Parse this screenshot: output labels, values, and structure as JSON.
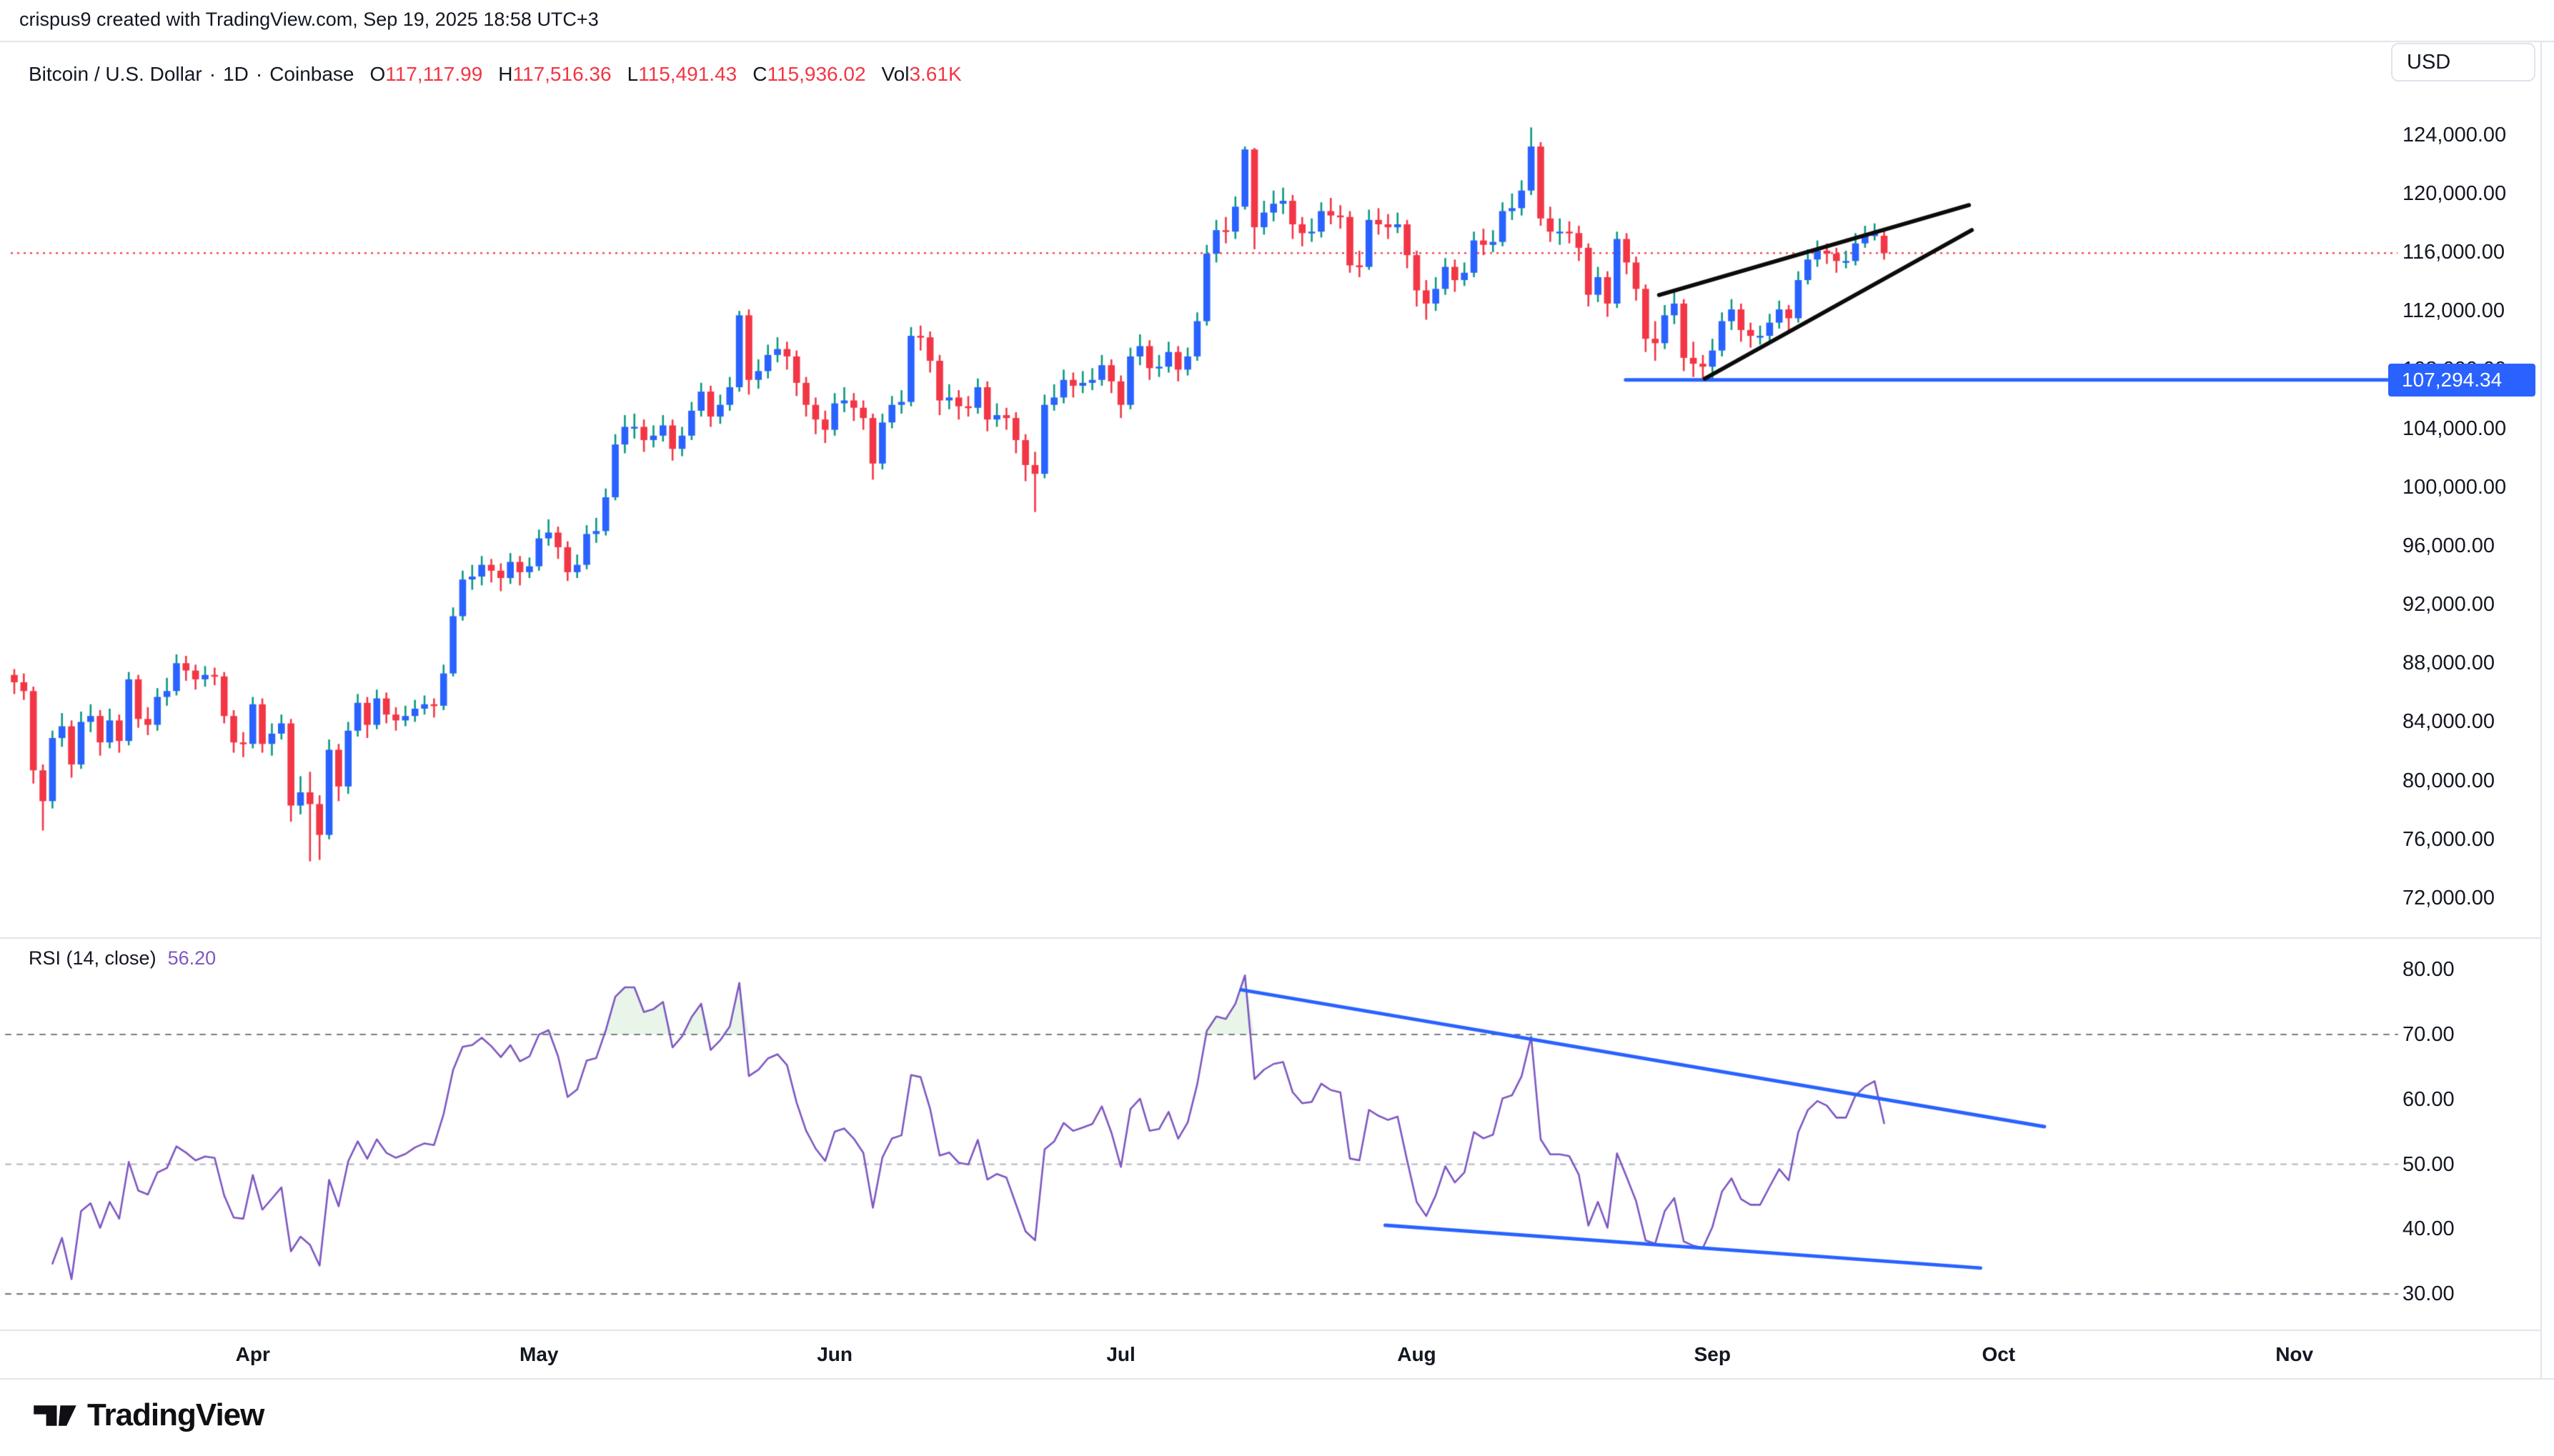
{
  "header": {
    "attribution": "crispus9 created with TradingView.com, Sep 19, 2025 18:58 UTC+3"
  },
  "legend": {
    "symbol": "Bitcoin / U.S. Dollar",
    "dot": "·",
    "interval": "1D",
    "exchange": "Coinbase",
    "o_label": "O",
    "o_value": "117,117.99",
    "h_label": "H",
    "h_value": "117,516.36",
    "l_label": "L",
    "l_value": "115,491.43",
    "c_label": "C",
    "c_value": "115,936.02",
    "vol_label": "Vol",
    "vol_value": "3.61K"
  },
  "price_axis": {
    "currency": "USD",
    "badge_label": "107,294.34",
    "ticks": [
      124000,
      120000,
      116000,
      112000,
      108000,
      104000,
      100000,
      96000,
      92000,
      88000,
      84000,
      80000,
      76000,
      72000
    ]
  },
  "rsi": {
    "label": "RSI (14, close)",
    "value": "56.20",
    "ticks": [
      80,
      70,
      60,
      50,
      40,
      30
    ],
    "overbought": 70,
    "midline": 50,
    "oversold": 30,
    "period": 14,
    "source": "close"
  },
  "time_axis": {
    "months": [
      {
        "label": "Apr",
        "day_index": 25
      },
      {
        "label": "May",
        "day_index": 55
      },
      {
        "label": "Jun",
        "day_index": 86
      },
      {
        "label": "Jul",
        "day_index": 116
      },
      {
        "label": "Aug",
        "day_index": 147
      },
      {
        "label": "Sep",
        "day_index": 178
      },
      {
        "label": "Oct",
        "day_index": 208
      },
      {
        "label": "Nov",
        "day_index": 239
      }
    ]
  },
  "footer": {
    "brand": "TradingView"
  },
  "colors": {
    "up": "#2962FF",
    "up_wick": "#089981",
    "down": "#F23645",
    "rsi_line": "#7E57C2",
    "level_dark": "#787B86",
    "level_light": "#B8BCC4",
    "drawing_blue": "#2962FF",
    "drawing_black": "#0C0C0C",
    "border": "#E0E3EB",
    "text": "#131722",
    "price_line": "#F23645",
    "overbought_fill": "rgba(76,175,80,0.13)",
    "oversold_fill": "rgba(242,54,69,0.10)"
  },
  "chart_data": {
    "type": "candlestick",
    "title": "Bitcoin / U.S. Dollar · 1D · Coinbase",
    "start_date": "2025-03-07",
    "end_date": "2025-09-19",
    "interval": "1D",
    "ylim": [
      69000,
      130300
    ],
    "legend_last": {
      "open": 117117.99,
      "high": 117516.36,
      "low": 115491.43,
      "close": 115936.02,
      "volume": "3.61K"
    },
    "price_line": {
      "price": 115936.02,
      "style": "dotted"
    },
    "candles": [
      [
        87200,
        87600,
        85900,
        86700
      ],
      [
        86700,
        87300,
        85500,
        86100
      ],
      [
        86100,
        86400,
        79800,
        80700
      ],
      [
        80700,
        81100,
        76600,
        78600
      ],
      [
        78600,
        83400,
        78100,
        82900
      ],
      [
        82900,
        84600,
        82300,
        83700
      ],
      [
        83700,
        84100,
        80200,
        81100
      ],
      [
        81100,
        84700,
        80800,
        84000
      ],
      [
        84000,
        85200,
        83300,
        84400
      ],
      [
        84400,
        84800,
        81700,
        82600
      ],
      [
        82600,
        84900,
        82200,
        84100
      ],
      [
        84100,
        84500,
        81900,
        82700
      ],
      [
        82700,
        87400,
        82400,
        86900
      ],
      [
        86900,
        87200,
        83600,
        84200
      ],
      [
        84200,
        85000,
        83100,
        83800
      ],
      [
        83800,
        86300,
        83400,
        85700
      ],
      [
        85700,
        87000,
        85100,
        86100
      ],
      [
        86100,
        88600,
        85800,
        88000
      ],
      [
        88000,
        88500,
        86800,
        87500
      ],
      [
        87500,
        87900,
        86200,
        86900
      ],
      [
        86900,
        87800,
        86400,
        87200
      ],
      [
        87200,
        87700,
        86500,
        87100
      ],
      [
        87100,
        87400,
        83900,
        84400
      ],
      [
        84400,
        84800,
        81900,
        82600
      ],
      [
        82600,
        83300,
        81600,
        82500
      ],
      [
        82500,
        85700,
        82200,
        85200
      ],
      [
        85200,
        85600,
        81900,
        82500
      ],
      [
        82500,
        83900,
        81700,
        83200
      ],
      [
        83200,
        84500,
        82800,
        83900
      ],
      [
        83900,
        84200,
        77200,
        78300
      ],
      [
        78300,
        80300,
        77700,
        79200
      ],
      [
        79200,
        80600,
        74500,
        78400
      ],
      [
        78400,
        79000,
        74600,
        76300
      ],
      [
        76300,
        82800,
        76000,
        82100
      ],
      [
        82100,
        82500,
        78600,
        79600
      ],
      [
        79600,
        84000,
        79100,
        83400
      ],
      [
        83400,
        85900,
        83000,
        85300
      ],
      [
        85300,
        85700,
        82900,
        83800
      ],
      [
        83800,
        86200,
        83500,
        85600
      ],
      [
        85600,
        86000,
        83900,
        84500
      ],
      [
        84500,
        85000,
        83400,
        84100
      ],
      [
        84100,
        85100,
        83700,
        84400
      ],
      [
        84400,
        85500,
        84000,
        84900
      ],
      [
        84900,
        85800,
        84500,
        85200
      ],
      [
        85200,
        85600,
        84300,
        85100
      ],
      [
        85100,
        87900,
        84800,
        87300
      ],
      [
        87300,
        91800,
        87100,
        91200
      ],
      [
        91200,
        94300,
        90900,
        93700
      ],
      [
        93700,
        94700,
        93000,
        93900
      ],
      [
        93900,
        95300,
        93300,
        94700
      ],
      [
        94700,
        95100,
        93500,
        94300
      ],
      [
        94300,
        94800,
        92900,
        93800
      ],
      [
        93800,
        95500,
        93400,
        94900
      ],
      [
        94900,
        95300,
        93300,
        94200
      ],
      [
        94200,
        95200,
        93800,
        94600
      ],
      [
        94600,
        97100,
        94300,
        96500
      ],
      [
        96500,
        97800,
        96000,
        96900
      ],
      [
        96900,
        97300,
        95100,
        95900
      ],
      [
        95900,
        96300,
        93600,
        94200
      ],
      [
        94200,
        95400,
        93800,
        94700
      ],
      [
        94700,
        97400,
        94400,
        96800
      ],
      [
        96800,
        97900,
        96200,
        97000
      ],
      [
        97000,
        99900,
        96700,
        99300
      ],
      [
        99300,
        103600,
        99100,
        102900
      ],
      [
        102900,
        104900,
        102300,
        104100
      ],
      [
        104100,
        105000,
        103300,
        104100
      ],
      [
        104100,
        104600,
        102400,
        103200
      ],
      [
        103200,
        104200,
        102700,
        103500
      ],
      [
        103500,
        104900,
        103100,
        104200
      ],
      [
        104200,
        104600,
        101800,
        102600
      ],
      [
        102600,
        104100,
        102100,
        103500
      ],
      [
        103500,
        105800,
        103200,
        105200
      ],
      [
        105200,
        107100,
        104800,
        106500
      ],
      [
        106500,
        106900,
        104100,
        104800
      ],
      [
        104800,
        106300,
        104300,
        105600
      ],
      [
        105600,
        107500,
        105200,
        106800
      ],
      [
        106800,
        112000,
        106500,
        111700
      ],
      [
        111700,
        112100,
        106300,
        107300
      ],
      [
        107300,
        108700,
        106700,
        107900
      ],
      [
        107900,
        109700,
        107400,
        109000
      ],
      [
        109000,
        110200,
        108500,
        109400
      ],
      [
        109400,
        109900,
        108000,
        108900
      ],
      [
        108900,
        109300,
        106200,
        107100
      ],
      [
        107100,
        107500,
        104800,
        105600
      ],
      [
        105600,
        106100,
        103600,
        104600
      ],
      [
        104600,
        105200,
        103000,
        103900
      ],
      [
        103900,
        106400,
        103500,
        105700
      ],
      [
        105700,
        106800,
        105100,
        105900
      ],
      [
        105900,
        106400,
        104500,
        105400
      ],
      [
        105400,
        105900,
        103900,
        104700
      ],
      [
        104700,
        105000,
        100500,
        101600
      ],
      [
        101600,
        105000,
        101200,
        104400
      ],
      [
        104400,
        106200,
        104000,
        105600
      ],
      [
        105600,
        106600,
        105000,
        105800
      ],
      [
        105800,
        110900,
        105500,
        110300
      ],
      [
        110300,
        111000,
        109300,
        110200
      ],
      [
        110200,
        110600,
        107800,
        108600
      ],
      [
        108600,
        109000,
        104900,
        105900
      ],
      [
        105900,
        107000,
        105300,
        106100
      ],
      [
        106100,
        106600,
        104600,
        105500
      ],
      [
        105500,
        106200,
        104800,
        105400
      ],
      [
        105400,
        107400,
        105000,
        106800
      ],
      [
        106800,
        107200,
        103800,
        104600
      ],
      [
        104600,
        105700,
        104100,
        104900
      ],
      [
        104900,
        105400,
        103900,
        104700
      ],
      [
        104700,
        105100,
        102300,
        103200
      ],
      [
        103200,
        103600,
        100400,
        101500
      ],
      [
        101500,
        102400,
        98300,
        100900
      ],
      [
        100900,
        106300,
        100600,
        105600
      ],
      [
        105600,
        107000,
        105200,
        106100
      ],
      [
        106100,
        108000,
        105700,
        107300
      ],
      [
        107300,
        107800,
        106100,
        106900
      ],
      [
        106900,
        107900,
        106400,
        107100
      ],
      [
        107100,
        108100,
        106600,
        107300
      ],
      [
        107300,
        109000,
        106900,
        108300
      ],
      [
        108300,
        108700,
        106400,
        107200
      ],
      [
        107200,
        107600,
        104700,
        105600
      ],
      [
        105600,
        109500,
        105300,
        108900
      ],
      [
        108900,
        110400,
        108300,
        109600
      ],
      [
        109600,
        110000,
        107300,
        108100
      ],
      [
        108100,
        109000,
        107500,
        108200
      ],
      [
        108200,
        109900,
        107800,
        109200
      ],
      [
        109200,
        109600,
        107200,
        108000
      ],
      [
        108000,
        109500,
        107600,
        108900
      ],
      [
        108900,
        111900,
        108600,
        111300
      ],
      [
        111300,
        116500,
        111000,
        115900
      ],
      [
        115900,
        118200,
        115300,
        117500
      ],
      [
        117500,
        118400,
        116600,
        117400
      ],
      [
        117400,
        119800,
        116900,
        119100
      ],
      [
        119100,
        123200,
        118900,
        123000
      ],
      [
        123000,
        123100,
        116200,
        117700
      ],
      [
        117700,
        119500,
        117200,
        118700
      ],
      [
        118700,
        120200,
        118100,
        119300
      ],
      [
        119300,
        120400,
        118600,
        119500
      ],
      [
        119500,
        119900,
        116900,
        117900
      ],
      [
        117900,
        118400,
        116400,
        117300
      ],
      [
        117300,
        118300,
        116700,
        117400
      ],
      [
        117400,
        119400,
        117000,
        118800
      ],
      [
        118800,
        119700,
        117900,
        118500
      ],
      [
        118500,
        119200,
        117600,
        118400
      ],
      [
        118400,
        118800,
        114600,
        115100
      ],
      [
        115100,
        116100,
        114300,
        115000
      ],
      [
        115000,
        118900,
        114800,
        118200
      ],
      [
        118200,
        119000,
        117200,
        117900
      ],
      [
        117900,
        118600,
        116900,
        117700
      ],
      [
        117700,
        118700,
        117300,
        117900
      ],
      [
        117900,
        118200,
        114900,
        115800
      ],
      [
        115800,
        116100,
        112300,
        113400
      ],
      [
        113400,
        114100,
        111400,
        112500
      ],
      [
        112500,
        114300,
        112000,
        113500
      ],
      [
        113500,
        115600,
        113100,
        115000
      ],
      [
        115000,
        115500,
        113300,
        114100
      ],
      [
        114100,
        115300,
        113700,
        114600
      ],
      [
        114600,
        117400,
        114300,
        116800
      ],
      [
        116800,
        117600,
        115800,
        116500
      ],
      [
        116500,
        117500,
        116000,
        116700
      ],
      [
        116700,
        119400,
        116400,
        118800
      ],
      [
        118800,
        120000,
        118200,
        119000
      ],
      [
        119000,
        120900,
        118500,
        120200
      ],
      [
        120200,
        124500,
        119900,
        123200
      ],
      [
        123200,
        123500,
        117800,
        118300
      ],
      [
        118300,
        119100,
        116700,
        117400
      ],
      [
        117400,
        118300,
        116500,
        117400
      ],
      [
        117400,
        118100,
        116600,
        117300
      ],
      [
        117300,
        117800,
        115400,
        116300
      ],
      [
        116300,
        116600,
        112300,
        113100
      ],
      [
        113100,
        115000,
        112600,
        114300
      ],
      [
        114300,
        114700,
        111600,
        112500
      ],
      [
        112500,
        117400,
        112200,
        116900
      ],
      [
        116900,
        117300,
        114500,
        115300
      ],
      [
        115300,
        115700,
        112700,
        113500
      ],
      [
        113500,
        113800,
        109200,
        110100
      ],
      [
        110100,
        111300,
        108600,
        109800
      ],
      [
        109800,
        112400,
        109400,
        111700
      ],
      [
        111700,
        113300,
        111100,
        112500
      ],
      [
        112500,
        112800,
        107900,
        108800
      ],
      [
        108800,
        109900,
        107500,
        108400
      ],
      [
        108400,
        109000,
        107400,
        108200
      ],
      [
        108200,
        110100,
        107300,
        109300
      ],
      [
        109300,
        111900,
        108900,
        111300
      ],
      [
        111300,
        112800,
        110700,
        112100
      ],
      [
        112100,
        112500,
        109900,
        110700
      ],
      [
        110700,
        111200,
        109500,
        110300
      ],
      [
        110300,
        111000,
        109700,
        110300
      ],
      [
        110300,
        111800,
        109900,
        111200
      ],
      [
        111200,
        112700,
        110800,
        112100
      ],
      [
        112100,
        112400,
        110500,
        111500
      ],
      [
        111500,
        114700,
        111200,
        114100
      ],
      [
        114100,
        116200,
        113800,
        115500
      ],
      [
        115500,
        116800,
        115000,
        116100
      ],
      [
        116100,
        116600,
        115200,
        115900
      ],
      [
        115900,
        116300,
        114600,
        115400
      ],
      [
        115400,
        116100,
        114900,
        115400
      ],
      [
        115400,
        117300,
        115100,
        116600
      ],
      [
        116600,
        117800,
        116300,
        117100
      ],
      [
        117100,
        117960,
        116800,
        117400
      ],
      [
        117117.99,
        117516.36,
        115491.43,
        115936.02
      ]
    ],
    "drawings": {
      "price_pane": {
        "support_line": {
          "price": 107294.34,
          "from_index": 168.9,
          "to": "price-axis"
        },
        "wedge_upper": {
          "from": {
            "index": 172.4,
            "price": 113080
          },
          "to": {
            "index": 204.9,
            "price": 119212
          }
        },
        "wedge_lower": {
          "from": {
            "index": 177.2,
            "price": 107385
          },
          "to": {
            "index": 205.2,
            "price": 117509
          }
        }
      },
      "rsi_pane": {
        "upper": {
          "from": {
            "index": 128.6,
            "value": 76.9
          },
          "to": {
            "index": 212.8,
            "value": 55.8
          }
        },
        "lower": {
          "from": {
            "index": 143.7,
            "value": 40.6
          },
          "to": {
            "index": 206.1,
            "value": 34.0
          }
        }
      }
    },
    "indicator": {
      "name": "RSI",
      "period": 14,
      "source": "close",
      "last_value": 56.2
    }
  }
}
